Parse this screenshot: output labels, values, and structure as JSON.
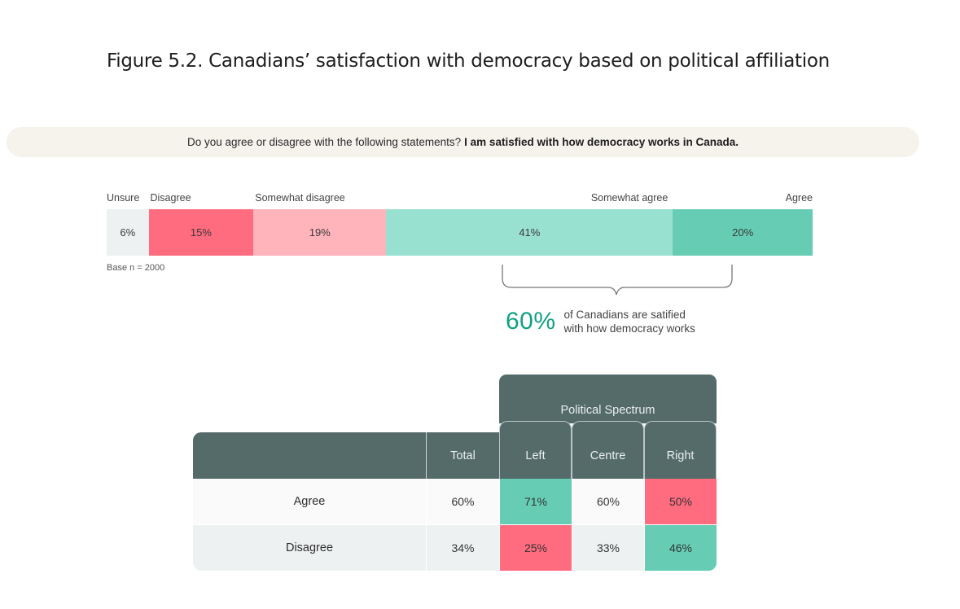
{
  "figure_title": "Figure 5.2. Canadians’ satisfaction with democracy based on political affiliation",
  "question": {
    "prefix": "Do you agree or disagree with the following statements?",
    "statement": "I am satisfied with how democracy works in Canada."
  },
  "base_note": "Base n = 2000",
  "callout": {
    "value": "60%",
    "line1": "of Canadians are satified",
    "line2": "with how democracy works"
  },
  "colors": {
    "unsure": "#eef1f1",
    "disagree": "#ff6b7f",
    "somewhat_disagree": "#ffb3ba",
    "somewhat_agree": "#98e1d1",
    "agree": "#66cdb4",
    "header": "#546b6a",
    "row_agree_bg": "#fafafa",
    "row_disagree_bg": "#eef1f2",
    "callout": "#11a083"
  },
  "chart_data": [
    {
      "type": "bar",
      "orientation": "horizontal-stacked",
      "title": "I am satisfied with how democracy works in Canada.",
      "categories": [
        "Unsure",
        "Disagree",
        "Somewhat disagree",
        "Somewhat agree",
        "Agree"
      ],
      "values": [
        6,
        15,
        19,
        41,
        20
      ],
      "value_labels": [
        "6%",
        "15%",
        "19%",
        "41%",
        "20%"
      ],
      "colors": [
        "#eef1f1",
        "#ff6b7f",
        "#ffb3ba",
        "#98e1d1",
        "#66cdb4"
      ],
      "unit": "%",
      "base_n": 2000,
      "annotation": "60% of Canadians are satified with how democracy works",
      "legend": "above-segments"
    },
    {
      "type": "table",
      "group_header": "Political Spectrum",
      "columns": [
        "",
        "Total",
        "Left",
        "Centre",
        "Right"
      ],
      "rows": [
        {
          "label": "Agree",
          "values": [
            "60%",
            "71%",
            "60%",
            "50%"
          ],
          "highlight": [
            "none",
            "green",
            "none",
            "red"
          ]
        },
        {
          "label": "Disagree",
          "values": [
            "34%",
            "25%",
            "33%",
            "46%"
          ],
          "highlight": [
            "none",
            "red",
            "none",
            "green"
          ]
        }
      ]
    }
  ]
}
